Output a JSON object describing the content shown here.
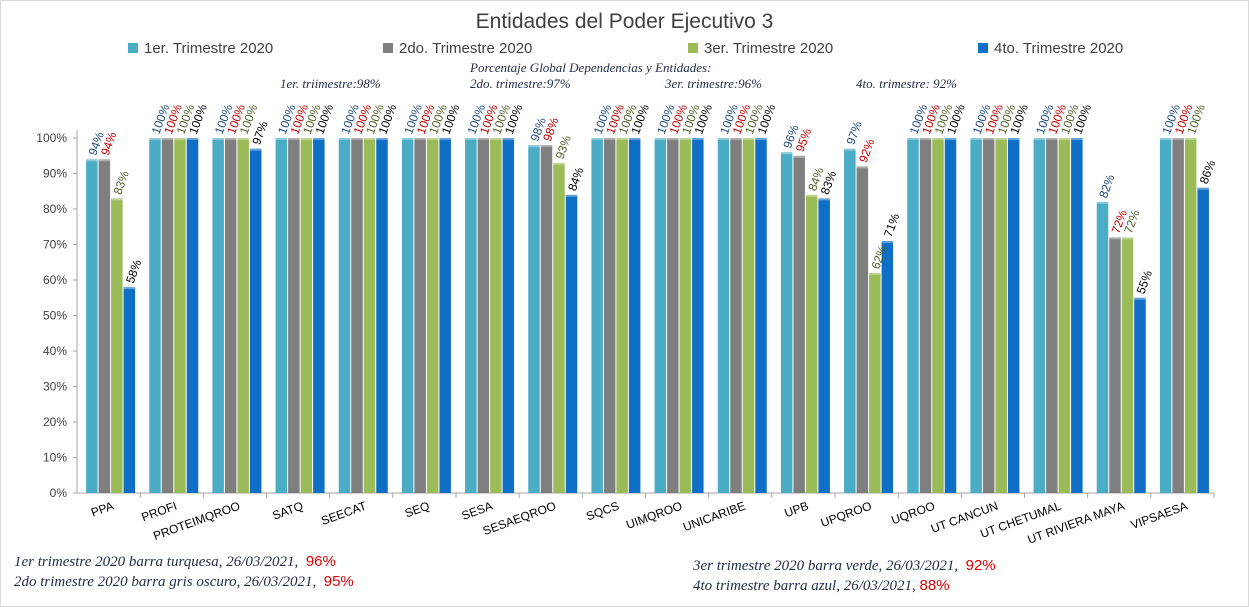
{
  "chart_data": {
    "type": "bar",
    "title": "Entidades del Poder Ejecutivo 3",
    "ylim": [
      0,
      100
    ],
    "yticks": [
      "0%",
      "10%",
      "20%",
      "30%",
      "40%",
      "50%",
      "60%",
      "70%",
      "80%",
      "90%",
      "100%"
    ],
    "grid": false,
    "legend_position": "top",
    "categories": [
      "PPA",
      "PROFI",
      "PROTEIMQROO",
      "SATQ",
      "SEECAT",
      "SEQ",
      "SESA",
      "SESAEQROO",
      "SQCS",
      "UIMQROO",
      "UNICARIBE",
      "UPB",
      "UPQROO",
      "UQROO",
      "UT CANCUN",
      "UT CHETUMAL",
      "UT RIVIERA MAYA",
      "VIPSAESA"
    ],
    "series": [
      {
        "name": "1er. Trimestre 2020",
        "color": "#4bacc6",
        "values": [
          94,
          100,
          100,
          100,
          100,
          100,
          100,
          98,
          100,
          100,
          100,
          96,
          97,
          100,
          100,
          100,
          82,
          100
        ],
        "labels": [
          "94%",
          "100%",
          "100%",
          "100%",
          "100%",
          "100%",
          "100%",
          "98%",
          "100%",
          "100%",
          "100%",
          "96%",
          "97%",
          "100%",
          "100%",
          "100%",
          "82%",
          "100%"
        ]
      },
      {
        "name": "2do. Trimestre 2020",
        "color": "#7f7f7f",
        "values": [
          94,
          100,
          100,
          100,
          100,
          100,
          100,
          98,
          100,
          100,
          100,
          95,
          92,
          100,
          100,
          100,
          72,
          100
        ],
        "labels": [
          "94%",
          "100%",
          "100%",
          "100%",
          "100%",
          "100%",
          "100%",
          "98%",
          "100%",
          "100%",
          "100%",
          "95%",
          "92%",
          "100%",
          "100%",
          "100%",
          "72%",
          "100%"
        ]
      },
      {
        "name": "3er. Trimestre 2020",
        "color": "#9bbb59",
        "values": [
          83,
          100,
          100,
          100,
          100,
          100,
          100,
          93,
          100,
          100,
          100,
          84,
          62,
          100,
          100,
          100,
          72,
          100
        ],
        "labels": [
          "83%",
          "100%",
          "100%",
          "100%",
          "100%",
          "100%",
          "100%",
          "93%",
          "100%",
          "100%",
          "100%",
          "84%",
          "62%",
          "100%",
          "100%",
          "100%",
          "72%",
          "100%"
        ]
      },
      {
        "name": "4to. Trimestre 2020",
        "color": "#0f6fc6",
        "values": [
          58,
          100,
          97,
          100,
          100,
          100,
          100,
          84,
          100,
          100,
          100,
          83,
          71,
          100,
          100,
          100,
          55,
          86
        ],
        "labels": [
          "58%",
          "100%",
          "97%",
          "100%",
          "100%",
          "100%",
          "100%",
          "84%",
          "100%",
          "100%",
          "100%",
          "83%",
          "71%",
          "100%",
          "100%",
          "100%",
          "55%",
          "86%"
        ]
      }
    ],
    "label_colors": [
      "#1f497d",
      "#c00000",
      "#4f6228",
      "#000000"
    ]
  },
  "annotations": {
    "header": "Porcentaje Global  Dependencias y Entidades:",
    "q1": "1er. triimestre:98%",
    "q2": "2do. trimestre:97%",
    "q3": "3er. trimestre:96%",
    "q4": "4to. trimestre: 92%"
  },
  "footer": {
    "line1_text": "1er trimestre  2020 barra turquesa,  26/03/2021,",
    "line1_pct": "96%",
    "line2_text": "2do trimestre 2020 barra gris oscuro,  26/03/2021,",
    "line2_pct": "95%",
    "line3_text": "3er trimestre 2020 barra verde,  26/03/2021,",
    "line3_pct": "92%",
    "line4_text": "4to trimestre barra azul, 26/03/2021,",
    "line4_pct": "88%"
  }
}
